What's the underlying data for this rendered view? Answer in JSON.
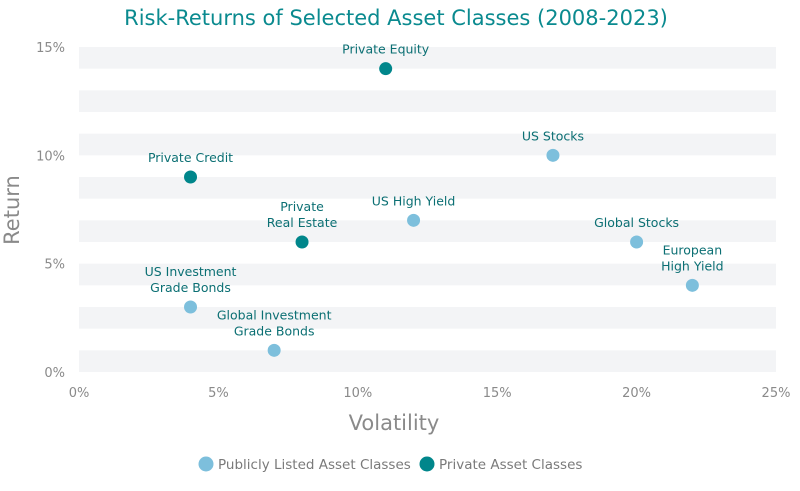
{
  "chart_data": {
    "type": "scatter",
    "title": "Risk-Returns of Selected Asset Classes (2008-2023)",
    "xlabel": "Volatility",
    "ylabel": "Return",
    "xlim": [
      0,
      25
    ],
    "ylim": [
      0,
      15
    ],
    "xticks": [
      "0%",
      "5%",
      "10%",
      "15%",
      "20%",
      "25%"
    ],
    "yticks": [
      "0%",
      "5%",
      "10%",
      "15%"
    ],
    "grid": "alternating horizontal bands",
    "legend_position": "bottom",
    "colors": {
      "Publicly Listed Asset Classes": "#7dbfdc",
      "Private Asset Classes": "#00868b"
    },
    "series": [
      {
        "name": "Publicly Listed Asset Classes",
        "points": [
          {
            "label": [
              "US Stocks"
            ],
            "x": 17,
            "y": 10
          },
          {
            "label": [
              "US High Yield"
            ],
            "x": 12,
            "y": 7
          },
          {
            "label": [
              "Global Stocks"
            ],
            "x": 20,
            "y": 6
          },
          {
            "label": [
              "European",
              "High Yield"
            ],
            "x": 22,
            "y": 4
          },
          {
            "label": [
              "US Investment",
              "Grade Bonds"
            ],
            "x": 4,
            "y": 3
          },
          {
            "label": [
              "Global Investment",
              "Grade Bonds"
            ],
            "x": 7,
            "y": 1
          }
        ]
      },
      {
        "name": "Private Asset Classes",
        "points": [
          {
            "label": [
              "Private Equity"
            ],
            "x": 11,
            "y": 14
          },
          {
            "label": [
              "Private Credit"
            ],
            "x": 4,
            "y": 9
          },
          {
            "label": [
              "Private",
              "Real Estate"
            ],
            "x": 8,
            "y": 6
          }
        ]
      }
    ]
  }
}
